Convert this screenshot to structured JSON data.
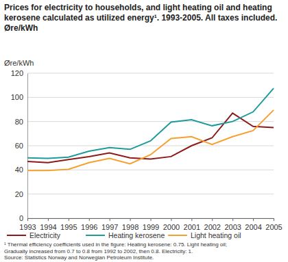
{
  "chart_data": {
    "type": "line",
    "title": "Prices for electricity to households, and light heating oil and heating kerosene calculated as utilized energy¹. 1993-2005. All taxes included. Øre/kWh",
    "y_label": "Øre/kWh",
    "categories": [
      "1993",
      "1994",
      "1995",
      "1996",
      "1997",
      "1998",
      "1999",
      "2000",
      "2001",
      "2002",
      "2003",
      "2004",
      "2005"
    ],
    "series": [
      {
        "name": "Electricity",
        "color": "#8b1a1a",
        "values": [
          47,
          46,
          48.5,
          51,
          54,
          50,
          49,
          51,
          60,
          66.5,
          87,
          76,
          75
        ]
      },
      {
        "name": "Heating kerosene",
        "color": "#1f9a9a",
        "values": [
          50,
          49.5,
          50.5,
          55.5,
          58.5,
          57,
          64,
          79.5,
          81.5,
          76.5,
          80,
          88,
          107.5
        ]
      },
      {
        "name": "Light heating oil",
        "color": "#f5a030",
        "values": [
          39.5,
          39.5,
          40.5,
          46,
          49.5,
          45,
          52.5,
          66,
          67.5,
          61,
          67.5,
          72.5,
          89.5
        ]
      }
    ],
    "ylim": [
      0,
      120
    ],
    "yticks": [
      0,
      20,
      40,
      60,
      80,
      100,
      120
    ],
    "grid": true,
    "legend": "bottom",
    "annotations": [
      "¹ Thermal efficiency coefficients used in the figure: Heating kerosene: 0.75. Light heating oil;",
      "Gradually increased from 0.7 to 0.8 from 1992 to 2002, then 0.8. Electricity: 1.",
      "Source: Statistics Norway and Norwegian Petroleum Institute."
    ]
  }
}
